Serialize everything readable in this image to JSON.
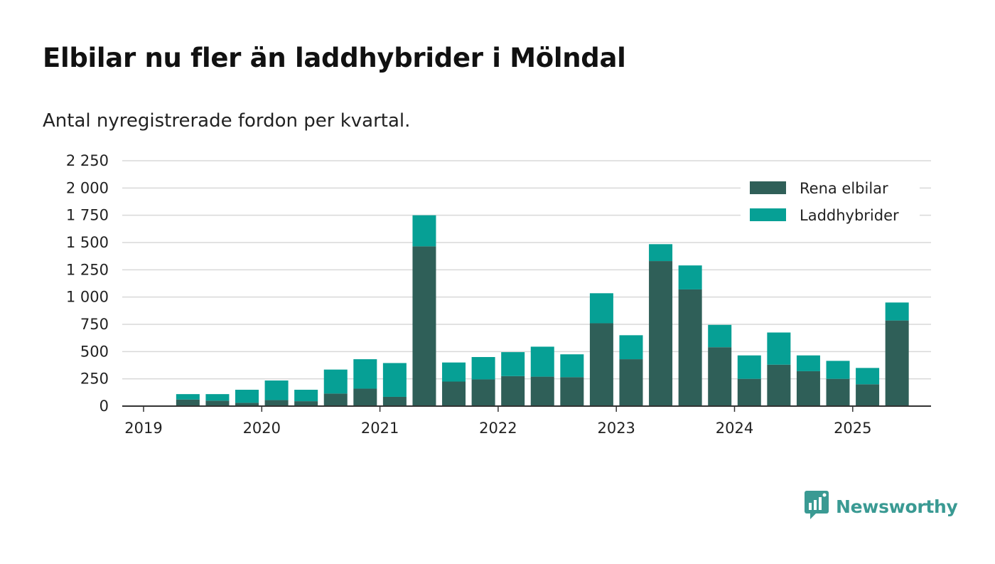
{
  "title": "Elbilar nu fler än laddhybrider i Mölndal",
  "subtitle": "Antal nyregistrerade fordon per kvartal.",
  "brand": {
    "name": "Newsworthy",
    "icon": "newsworthy-logo-icon",
    "color": "#3a9a93"
  },
  "colors": {
    "ev": "#2f5f58",
    "phev": "#06a095",
    "grid": "#d9d9d9",
    "axis": "#333333"
  },
  "chart_data": {
    "type": "bar",
    "stacked": true,
    "title": "Elbilar nu fler än laddhybrider i Mölndal",
    "subtitle": "Antal nyregistrerade fordon per kvartal.",
    "xlabel": "",
    "ylabel": "",
    "ylim": [
      0,
      2250
    ],
    "yticks": [
      0,
      250,
      500,
      750,
      1000,
      1250,
      1500,
      1750,
      2000,
      2250
    ],
    "ytick_labels": [
      "0",
      "250",
      "500",
      "750",
      "1 000",
      "1 250",
      "1 500",
      "1 750",
      "2 000",
      "2 250"
    ],
    "xticks": [
      {
        "at": "2019-01-01",
        "label": "2019"
      },
      {
        "at": "2020-01-01",
        "label": "2020"
      },
      {
        "at": "2021-01-01",
        "label": "2021"
      },
      {
        "at": "2022-01-01",
        "label": "2022"
      },
      {
        "at": "2023-01-01",
        "label": "2023"
      },
      {
        "at": "2024-01-01",
        "label": "2024"
      },
      {
        "at": "2025-01-01",
        "label": "2025"
      }
    ],
    "categories": [
      "2019-Q2",
      "2019-Q3",
      "2019-Q4",
      "2020-Q1",
      "2020-Q2",
      "2020-Q3",
      "2020-Q4",
      "2021-Q1",
      "2021-Q2",
      "2021-Q3",
      "2021-Q4",
      "2022-Q1",
      "2022-Q2",
      "2022-Q3",
      "2022-Q4",
      "2023-Q1",
      "2023-Q2",
      "2023-Q3",
      "2023-Q4",
      "2024-Q1",
      "2024-Q2",
      "2024-Q3",
      "2024-Q4",
      "2025-Q1",
      "2025-Q2"
    ],
    "series": [
      {
        "name": "Rena elbilar",
        "color": "#2f5f58",
        "values": [
          60,
          50,
          30,
          55,
          45,
          115,
          160,
          85,
          1465,
          225,
          245,
          275,
          270,
          265,
          760,
          430,
          1330,
          1070,
          540,
          250,
          380,
          320,
          250,
          200,
          785
        ]
      },
      {
        "name": "Laddhybrider",
        "color": "#06a095",
        "values": [
          50,
          60,
          120,
          180,
          105,
          220,
          270,
          310,
          285,
          175,
          205,
          220,
          275,
          210,
          275,
          220,
          155,
          220,
          205,
          215,
          295,
          145,
          165,
          150,
          165
        ]
      }
    ],
    "grid": true,
    "legend": "top-right"
  }
}
